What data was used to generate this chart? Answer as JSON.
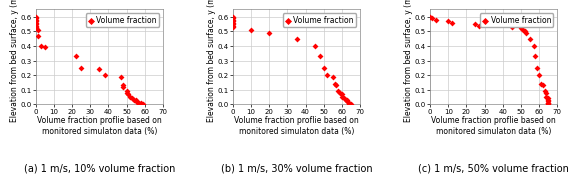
{
  "panels": [
    {
      "title": "(a) 1 m/s, 10% volume fraction",
      "xlabel": "Volume fraction proflie based on\nmonitored simulaton data (%)",
      "ylabel": "Elevation from bed surface, y (m)",
      "legend_label": "Volume fraction",
      "xlim": [
        0,
        70
      ],
      "ylim": [
        0,
        0.65
      ],
      "xticks": [
        0,
        10,
        20,
        30,
        40,
        50,
        60,
        70
      ],
      "yticks": [
        0.0,
        0.1,
        0.2,
        0.3,
        0.4,
        0.5,
        0.6
      ],
      "x": [
        0,
        0,
        0,
        0,
        0,
        0,
        0,
        0,
        0,
        1,
        1,
        3,
        5,
        22,
        25,
        35,
        38,
        47,
        48,
        48,
        50,
        50,
        51,
        52,
        53,
        54,
        55,
        55,
        56,
        57,
        58,
        57,
        59
      ],
      "y": [
        0.6,
        0.59,
        0.58,
        0.57,
        0.56,
        0.55,
        0.54,
        0.53,
        0.52,
        0.51,
        0.47,
        0.4,
        0.39,
        0.33,
        0.25,
        0.24,
        0.2,
        0.19,
        0.13,
        0.12,
        0.09,
        0.08,
        0.07,
        0.05,
        0.04,
        0.03,
        0.03,
        0.02,
        0.01,
        0.01,
        0.01,
        0.0,
        0.0
      ]
    },
    {
      "title": "(b) 1 m/s, 30% volume fraction",
      "xlabel": "Volume fraction proflie based on\nmonitored simulaton data (%)",
      "ylabel": "Elevation from bed surface, y (m)",
      "legend_label": "Volume fraction",
      "xlim": [
        0,
        70
      ],
      "ylim": [
        0,
        0.65
      ],
      "xticks": [
        0,
        10,
        20,
        30,
        40,
        50,
        60,
        70
      ],
      "yticks": [
        0.0,
        0.1,
        0.2,
        0.3,
        0.4,
        0.5,
        0.6
      ],
      "x": [
        0,
        0,
        0,
        0,
        0,
        0,
        0,
        0,
        10,
        20,
        35,
        45,
        48,
        50,
        52,
        55,
        56,
        57,
        58,
        59,
        60,
        60,
        61,
        62,
        63,
        63,
        64,
        64,
        65
      ],
      "y": [
        0.6,
        0.59,
        0.58,
        0.57,
        0.56,
        0.55,
        0.54,
        0.53,
        0.51,
        0.49,
        0.45,
        0.4,
        0.33,
        0.25,
        0.2,
        0.19,
        0.14,
        0.13,
        0.09,
        0.08,
        0.07,
        0.05,
        0.04,
        0.03,
        0.03,
        0.02,
        0.01,
        0.0,
        0.0
      ]
    },
    {
      "title": "(c) 1 m/s, 50% volume fraction",
      "xlabel": "Volume fraction proflie based on\nmonitored simulaton data (%)",
      "ylabel": "Elevation from bed surface, y (m)",
      "legend_label": "Volume fraction",
      "xlim": [
        0,
        70
      ],
      "ylim": [
        0,
        0.65
      ],
      "xticks": [
        0,
        10,
        20,
        30,
        40,
        50,
        60,
        70
      ],
      "yticks": [
        0.0,
        0.1,
        0.2,
        0.3,
        0.4,
        0.5,
        0.6
      ],
      "x": [
        0,
        1,
        3,
        10,
        12,
        25,
        27,
        45,
        50,
        51,
        52,
        53,
        55,
        57,
        58,
        59,
        60,
        61,
        62,
        63,
        64,
        64,
        65,
        65,
        65,
        65,
        65,
        65
      ],
      "y": [
        0.6,
        0.59,
        0.58,
        0.57,
        0.56,
        0.55,
        0.54,
        0.53,
        0.52,
        0.51,
        0.5,
        0.49,
        0.45,
        0.4,
        0.33,
        0.25,
        0.2,
        0.14,
        0.13,
        0.09,
        0.08,
        0.05,
        0.04,
        0.03,
        0.02,
        0.01,
        0.01,
        0.0
      ]
    }
  ],
  "marker_color": "#ff0000",
  "marker": "D",
  "marker_size": 3,
  "grid_color": "#cccccc",
  "label_fontsize": 5.5,
  "tick_fontsize": 5.0,
  "legend_fontsize": 5.5,
  "caption_fontsize": 7.0,
  "bg_color": "#ffffff"
}
